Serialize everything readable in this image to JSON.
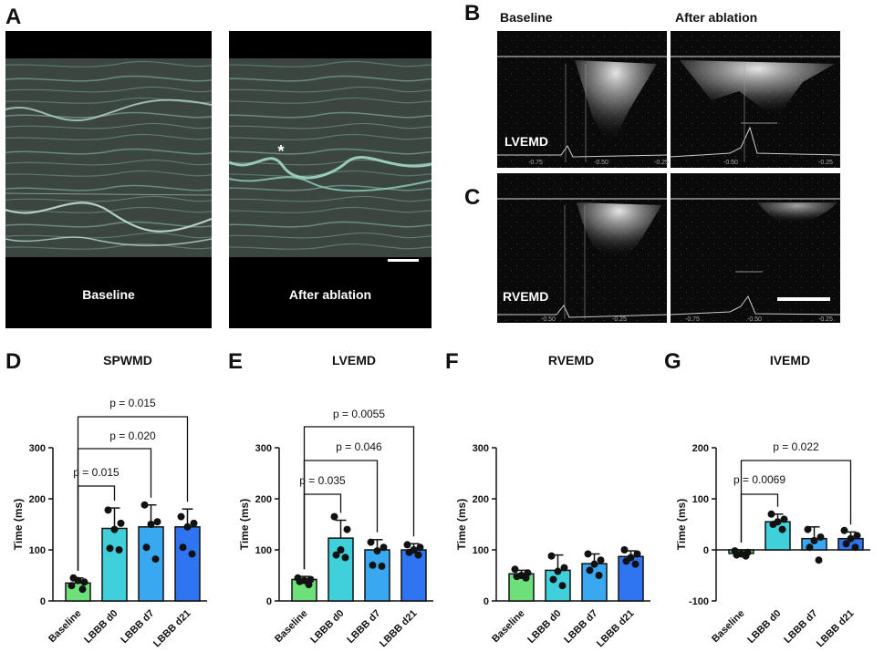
{
  "panel_letters": {
    "a": "A",
    "b": "B",
    "c": "C",
    "d": "D",
    "e": "E",
    "f": "F",
    "g": "G"
  },
  "images": {
    "a_left_label": "Baseline",
    "a_right_label": "After ablation",
    "a_marker": "*",
    "b_left_label": "Baseline",
    "b_right_label": "After ablation",
    "b_overlay": "LVEMD",
    "c_overlay": "RVEMD",
    "b_left_ticks": [
      "-0.75",
      "-0.50",
      "-0.25"
    ],
    "b_right_ticks": [
      "-0.50",
      "-0.25"
    ],
    "c_left_ticks": [
      "-0.50",
      "-0.25"
    ],
    "c_right_ticks": [
      "-0.75",
      "-0.50",
      "-0.25"
    ]
  },
  "colors": {
    "Baseline": "#6ee07a",
    "LBBB d0": "#40d0dc",
    "LBBB d7": "#3aa8f0",
    "LBBB d21": "#2f74f0"
  },
  "chart_data": [
    {
      "type": "bar",
      "panel": "D",
      "title": "SPWMD",
      "ylabel": "Time (ms)",
      "categories": [
        "Baseline",
        "LBBB d0",
        "LBBB d7",
        "LBBB d21"
      ],
      "values": [
        35,
        142,
        145,
        145
      ],
      "error_upper": [
        45,
        182,
        188,
        180
      ],
      "points": [
        [
          30,
          37,
          40,
          45,
          23
        ],
        [
          178,
          152,
          140,
          103,
          100
        ],
        [
          188,
          155,
          150,
          105,
          82
        ],
        [
          165,
          152,
          145,
          105,
          92
        ]
      ],
      "ylim": [
        0,
        300
      ],
      "yticks": [
        "0",
        "100",
        "200",
        "300"
      ],
      "comparisons": [
        {
          "from": 0,
          "to": 1,
          "label": "p = 0.015"
        },
        {
          "from": 0,
          "to": 2,
          "label": "p = 0.020"
        },
        {
          "from": 0,
          "to": 3,
          "label": "p = 0.015"
        }
      ]
    },
    {
      "type": "bar",
      "panel": "E",
      "title": "LVEMD",
      "ylabel": "Time (ms)",
      "categories": [
        "Baseline",
        "LBBB d0",
        "LBBB d7",
        "LBBB d21"
      ],
      "values": [
        42,
        123,
        100,
        100
      ],
      "error_upper": [
        48,
        158,
        120,
        112
      ],
      "points": [
        [
          45,
          42,
          40,
          38,
          32
        ],
        [
          165,
          140,
          100,
          90,
          85
        ],
        [
          115,
          105,
          98,
          70,
          68
        ],
        [
          110,
          105,
          100,
          95,
          90
        ]
      ],
      "ylim": [
        0,
        300
      ],
      "yticks": [
        "0",
        "100",
        "200",
        "300"
      ],
      "comparisons": [
        {
          "from": 0,
          "to": 1,
          "label": "p = 0.035"
        },
        {
          "from": 0,
          "to": 2,
          "label": "p = 0.046"
        },
        {
          "from": 0,
          "to": 3,
          "label": "p = 0.0055"
        }
      ]
    },
    {
      "type": "bar",
      "panel": "F",
      "title": "RVEMD",
      "ylabel": "Time (ms)",
      "categories": [
        "Baseline",
        "LBBB d0",
        "LBBB d7",
        "LBBB d21"
      ],
      "values": [
        53,
        60,
        73,
        87
      ],
      "error_upper": [
        60,
        90,
        92,
        98
      ],
      "points": [
        [
          62,
          55,
          50,
          48,
          45
        ],
        [
          88,
          65,
          58,
          42,
          30
        ],
        [
          92,
          80,
          72,
          60,
          50
        ],
        [
          100,
          92,
          85,
          78,
          72
        ]
      ],
      "ylim": [
        0,
        300
      ],
      "yticks": [
        "0",
        "100",
        "200",
        "300"
      ],
      "comparisons": []
    },
    {
      "type": "bar",
      "panel": "G",
      "title": "IVEMD",
      "ylabel": "Time (ms)",
      "categories": [
        "Baseline",
        "LBBB d0",
        "LBBB d7",
        "LBBB d21"
      ],
      "values": [
        -7,
        55,
        22,
        22
      ],
      "error_upper": [
        0,
        70,
        45,
        35
      ],
      "points": [
        [
          -2,
          -5,
          -8,
          -10,
          -12
        ],
        [
          70,
          60,
          55,
          50,
          40
        ],
        [
          40,
          25,
          18,
          5,
          -20
        ],
        [
          38,
          28,
          22,
          12,
          5
        ]
      ],
      "ylim": [
        -100,
        200
      ],
      "yticks": [
        "-100",
        "0",
        "100",
        "200"
      ],
      "comparisons": [
        {
          "from": 0,
          "to": 1,
          "label": "p = 0.0069"
        },
        {
          "from": 0,
          "to": 3,
          "label": "p = 0.022"
        }
      ]
    }
  ]
}
